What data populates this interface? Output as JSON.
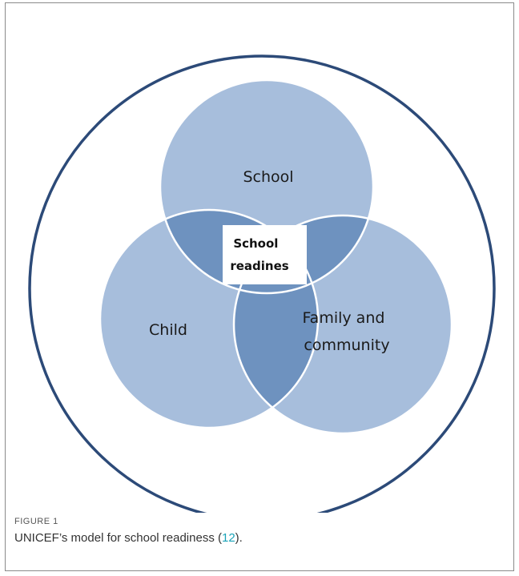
{
  "diagram": {
    "circles": [
      {
        "name": "school",
        "label_lines": [
          "School"
        ]
      },
      {
        "name": "child",
        "label_lines": [
          "Child"
        ]
      },
      {
        "name": "family",
        "label_lines": [
          "Family and",
          "community"
        ]
      }
    ],
    "center_label_lines": [
      "School",
      "readines"
    ],
    "colors": {
      "outer_circle": "#2c4a78",
      "circle_fill": "#a7bedc",
      "overlap_fill": "#6e92bf",
      "circle_edge": "#ffffff",
      "center_box": "#ffffff"
    }
  },
  "caption": {
    "figure_label": "FIGURE 1",
    "text_before": "UNICEF’s model for school readiness (",
    "citation": "12",
    "text_after": ")."
  }
}
